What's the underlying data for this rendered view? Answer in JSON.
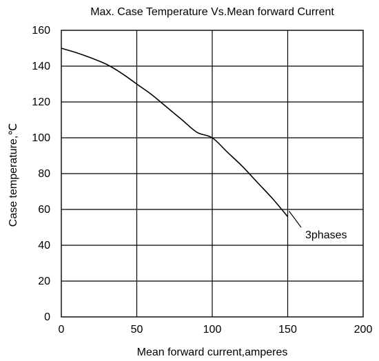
{
  "chart_data": {
    "type": "line",
    "title": "Max. Case Temperature  Vs.Mean forward  Current",
    "xlabel": "Mean forward  current,amperes",
    "ylabel": "Case temperature,℃",
    "xlim": [
      0,
      200
    ],
    "ylim": [
      0,
      160
    ],
    "xticks": [
      0,
      50,
      100,
      150,
      200
    ],
    "yticks": [
      0,
      20,
      40,
      60,
      80,
      100,
      120,
      140,
      160
    ],
    "grid": true,
    "series": [
      {
        "name": "3phases",
        "x": [
          0,
          10,
          20,
          30,
          40,
          50,
          60,
          70,
          80,
          90,
          100,
          110,
          120,
          130,
          140,
          150
        ],
        "y": [
          150,
          147.5,
          144.5,
          141,
          136,
          130,
          124,
          117,
          110,
          103,
          100,
          92,
          84,
          75,
          66,
          56
        ]
      }
    ],
    "annotations": [
      {
        "text": "3phases"
      }
    ]
  }
}
